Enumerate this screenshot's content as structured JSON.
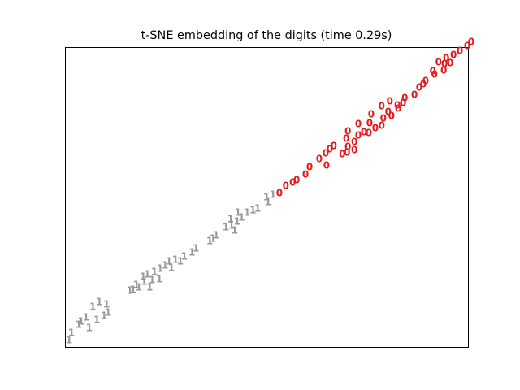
{
  "chart_data": {
    "type": "text-scatter",
    "title": "t-SNE embedding of the digits (time 0.29s)",
    "xlim": [
      0,
      1
    ],
    "ylim": [
      0,
      1
    ],
    "series": [
      {
        "label": "0",
        "color": "#e41a1c",
        "x": [
          1.008,
          0.998,
          0.98,
          0.964,
          0.946,
          0.942,
          0.927,
          0.956,
          0.913,
          0.917,
          0.94,
          0.895,
          0.889,
          0.879,
          0.867,
          0.843,
          0.839,
          0.825,
          0.806,
          0.786,
          0.802,
          0.827,
          0.81,
          0.79,
          0.76,
          0.786,
          0.77,
          0.754,
          0.742,
          0.728,
          0.728,
          0.702,
          0.698,
          0.756,
          0.718,
          0.718,
          0.702,
          0.7,
          0.688,
          0.667,
          0.657,
          0.647,
          0.631,
          0.649,
          0.607,
          0.597,
          0.575,
          0.565,
          0.548,
          0.532
        ],
        "y": [
          1.016,
          1.003,
          0.986,
          0.973,
          0.962,
          0.943,
          0.949,
          0.946,
          0.919,
          0.908,
          0.921,
          0.886,
          0.875,
          0.864,
          0.84,
          0.829,
          0.813,
          0.805,
          0.818,
          0.802,
          0.783,
          0.794,
          0.77,
          0.762,
          0.775,
          0.737,
          0.729,
          0.713,
          0.715,
          0.705,
          0.743,
          0.718,
          0.694,
          0.745,
          0.683,
          0.656,
          0.667,
          0.648,
          0.642,
          0.669,
          0.659,
          0.645,
          0.626,
          0.604,
          0.599,
          0.575,
          0.556,
          0.547,
          0.537,
          0.512
        ]
      },
      {
        "label": "1",
        "color": "#999999",
        "x": [
          0.516,
          0.5,
          0.504,
          0.478,
          0.466,
          0.452,
          0.438,
          0.429,
          0.427,
          0.413,
          0.411,
          0.399,
          0.421,
          0.375,
          0.367,
          0.359,
          0.325,
          0.315,
          0.296,
          0.286,
          0.274,
          0.258,
          0.264,
          0.248,
          0.236,
          0.222,
          0.204,
          0.234,
          0.216,
          0.196,
          0.194,
          0.177,
          0.21,
          0.169,
          0.183,
          0.161,
          0.103,
          0.085,
          0.069,
          0.107,
          0.097,
          0.079,
          0.052,
          0.04,
          0.06,
          0.034,
          0.016,
          0.01
        ],
        "y": [
          0.507,
          0.499,
          0.482,
          0.461,
          0.455,
          0.447,
          0.431,
          0.447,
          0.417,
          0.404,
          0.425,
          0.398,
          0.388,
          0.371,
          0.36,
          0.352,
          0.328,
          0.314,
          0.301,
          0.285,
          0.29,
          0.285,
          0.263,
          0.271,
          0.26,
          0.249,
          0.241,
          0.225,
          0.222,
          0.217,
          0.233,
          0.206,
          0.198,
          0.19,
          0.198,
          0.187,
          0.141,
          0.149,
          0.133,
          0.114,
          0.103,
          0.089,
          0.098,
          0.084,
          0.062,
          0.073,
          0.046,
          0.022
        ]
      }
    ]
  }
}
